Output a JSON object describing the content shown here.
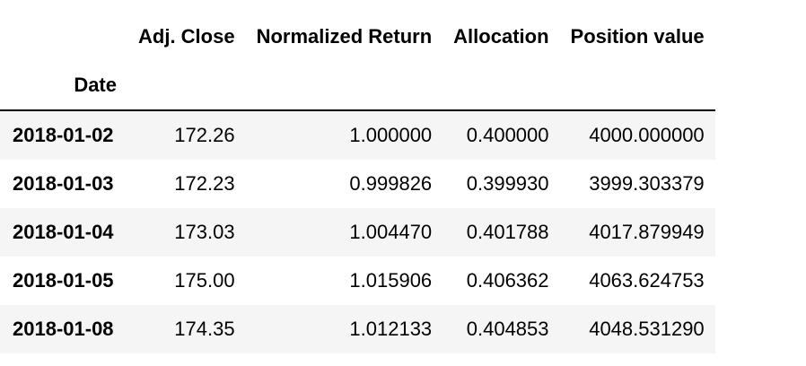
{
  "table": {
    "columns": [
      "Adj. Close",
      "Normalized Return",
      "Allocation",
      "Position value"
    ],
    "index_name": "Date",
    "rows": [
      {
        "date": "2018-01-02",
        "values": [
          "172.26",
          "1.000000",
          "0.400000",
          "4000.000000"
        ]
      },
      {
        "date": "2018-01-03",
        "values": [
          "172.23",
          "0.999826",
          "0.399930",
          "3999.303379"
        ]
      },
      {
        "date": "2018-01-04",
        "values": [
          "173.03",
          "1.004470",
          "0.401788",
          "4017.879949"
        ]
      },
      {
        "date": "2018-01-05",
        "values": [
          "175.00",
          "1.015906",
          "0.406362",
          "4063.624753"
        ]
      },
      {
        "date": "2018-01-08",
        "values": [
          "174.35",
          "1.012133",
          "0.404853",
          "4048.531290"
        ]
      }
    ]
  }
}
